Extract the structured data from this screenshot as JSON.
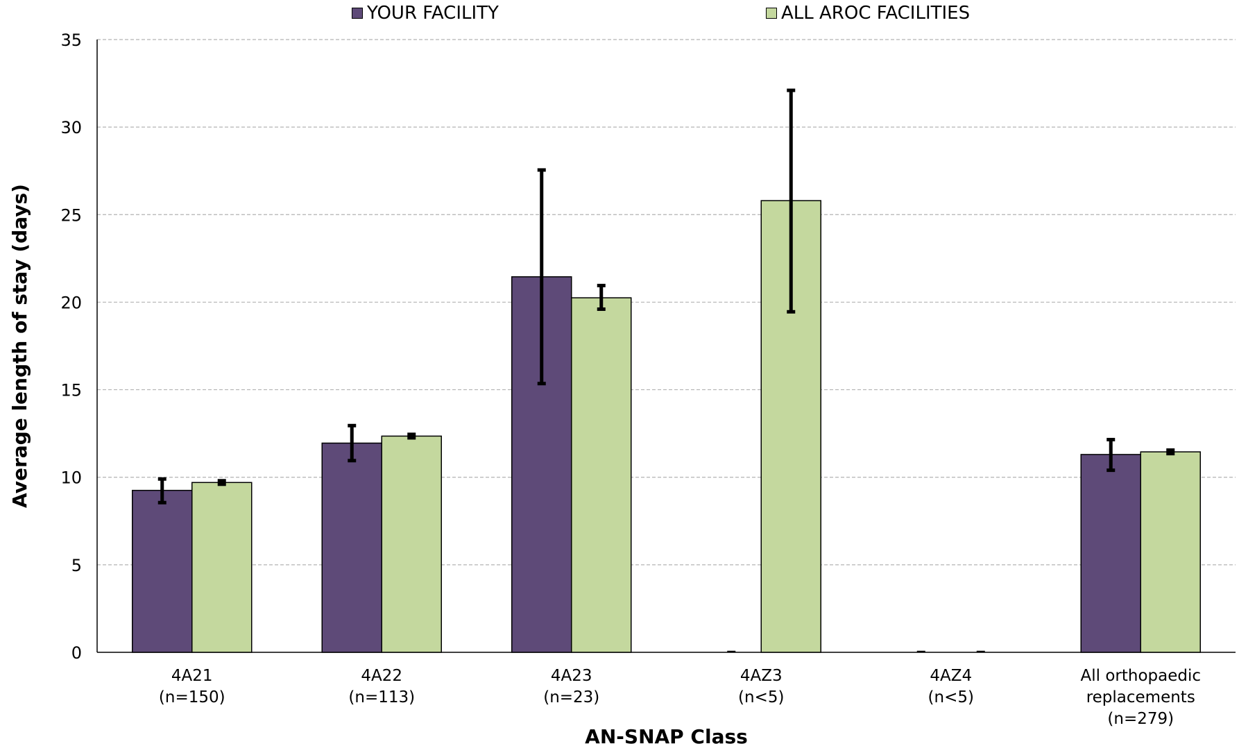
{
  "chart_data": {
    "type": "bar",
    "title": "",
    "xlabel": "AN-SNAP Class",
    "ylabel": "Average length of stay (days)",
    "ylim": [
      0,
      35
    ],
    "yticks": [
      0,
      5,
      10,
      15,
      20,
      25,
      30,
      35
    ],
    "grid": "horizontal-dashed",
    "legend_position": "top",
    "categories": [
      [
        "4A21",
        "(n=150)"
      ],
      [
        "4A22",
        "(n=113)"
      ],
      [
        "4A23",
        "(n=23)"
      ],
      [
        "4AZ3",
        "(n<5)"
      ],
      [
        "4AZ4",
        "(n<5)"
      ],
      [
        "All orthopaedic",
        "replacements",
        "(n=279)"
      ]
    ],
    "series": [
      {
        "name": "YOUR FACILITY",
        "color": "#5e4a78",
        "values": [
          9.25,
          11.95,
          21.45,
          0,
          0,
          11.3
        ],
        "error_low": [
          8.55,
          10.95,
          15.35,
          0,
          0,
          10.4
        ],
        "error_high": [
          9.9,
          12.95,
          27.55,
          0,
          0,
          12.15
        ]
      },
      {
        "name": "ALL AROC FACILITIES",
        "color": "#c4d89e",
        "values": [
          9.7,
          12.35,
          20.25,
          25.8,
          0,
          11.45
        ],
        "error_low": [
          9.6,
          12.25,
          19.6,
          19.45,
          0,
          11.35
        ],
        "error_high": [
          9.8,
          12.45,
          20.95,
          32.1,
          0,
          11.55
        ]
      }
    ]
  }
}
